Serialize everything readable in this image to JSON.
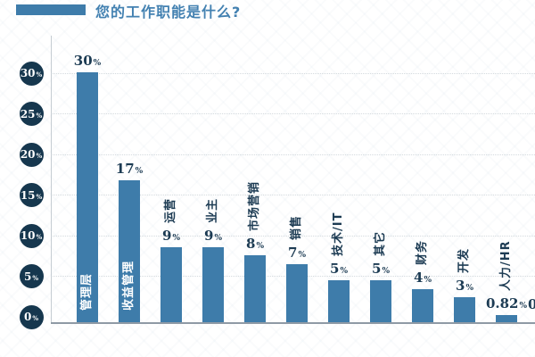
{
  "header": {
    "title": "您的工作职能是什么?"
  },
  "chart_data": {
    "type": "bar",
    "title": "您的工作职能是什么?",
    "categories": [
      "管理层",
      "收益管理",
      "运营",
      "业主",
      "市场营销",
      "销售",
      "技术/IT",
      "其它",
      "财务",
      "开发",
      "人力/HR"
    ],
    "values": [
      30,
      17,
      9,
      9,
      8,
      7,
      5,
      5,
      4,
      3,
      0.82
    ],
    "value_labels": [
      "30%",
      "17%",
      "9%",
      "9%",
      "8%",
      "7%",
      "5%",
      "5%",
      "4%",
      "3%",
      "0.82%"
    ],
    "label_inside": [
      true,
      true,
      false,
      false,
      false,
      false,
      false,
      false,
      false,
      false,
      false
    ],
    "y_ticks": [
      "30%",
      "25%",
      "20%",
      "15%",
      "10%",
      "5%",
      "0%"
    ],
    "ylim": [
      0,
      30
    ],
    "grid": "dotted horizontal gridlines",
    "legend": "none",
    "partial_next_value": "0",
    "colors": {
      "bar": "#3e7caa",
      "title": "#4381b1",
      "tick_circle": "#16374e",
      "value_text": "#1c3b53",
      "label_inside": "#ffffff",
      "gridline": "#d4dade",
      "axis": "#8f9aa5"
    }
  }
}
